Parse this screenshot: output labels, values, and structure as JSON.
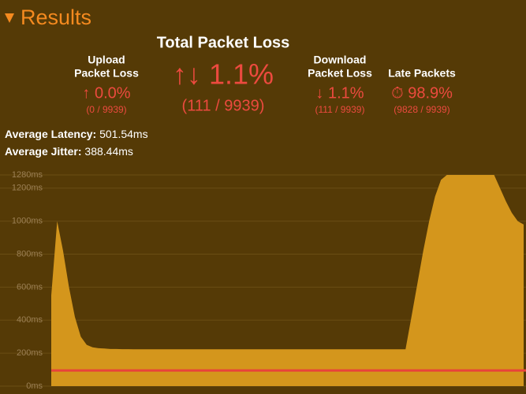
{
  "header": {
    "title": "Results"
  },
  "summary": {
    "total": {
      "label": "Total Packet Loss",
      "value": "↑↓ 1.1%",
      "detail": "(111 / 9939)"
    },
    "upload": {
      "label_lines": [
        "Upload",
        "Packet Loss"
      ],
      "value": "↑ 0.0%",
      "detail": "(0 / 9939)"
    },
    "download": {
      "label_lines": [
        "Download",
        "Packet Loss"
      ],
      "value": "↓ 1.1%",
      "detail": "(111 / 9939)"
    },
    "late": {
      "label_lines": [
        "Late Packets"
      ],
      "value": "⏱ 98.9%",
      "detail": "(9828 / 9939)"
    }
  },
  "stats": [
    {
      "label": "Average Latency:",
      "value": "501.54ms"
    },
    {
      "label": "Average Jitter:",
      "value": "388.44ms"
    }
  ],
  "chart_data": {
    "type": "area",
    "color": "#d4961c",
    "threshold": 95,
    "threshold_color": "#e8433a",
    "grid": true,
    "ylim": [
      0,
      1280
    ],
    "yticks": [
      {
        "value": 0,
        "label": "0ms"
      },
      {
        "value": 200,
        "label": "200ms"
      },
      {
        "value": 400,
        "label": "400ms"
      },
      {
        "value": 600,
        "label": "600ms"
      },
      {
        "value": 800,
        "label": "800ms"
      },
      {
        "value": 1000,
        "label": "1000ms"
      },
      {
        "value": 1200,
        "label": "1200ms"
      },
      {
        "value": 1280,
        "label": "1280ms"
      }
    ],
    "values": [
      550,
      1000,
      820,
      600,
      420,
      300,
      250,
      235,
      230,
      228,
      225,
      225,
      224,
      224,
      223,
      223,
      223,
      223,
      223,
      223,
      223,
      223,
      223,
      223,
      223,
      223,
      223,
      223,
      223,
      223,
      223,
      223,
      223,
      223,
      223,
      223,
      223,
      223,
      223,
      223,
      223,
      223,
      223,
      223,
      223,
      223,
      223,
      223,
      223,
      223,
      223,
      223,
      223,
      223,
      223,
      223,
      223,
      223,
      223,
      223,
      223,
      420,
      620,
      820,
      1000,
      1150,
      1250,
      1280,
      1280,
      1280,
      1280,
      1280,
      1280,
      1280,
      1280,
      1280,
      1200,
      1120,
      1050,
      1000,
      980
    ]
  }
}
